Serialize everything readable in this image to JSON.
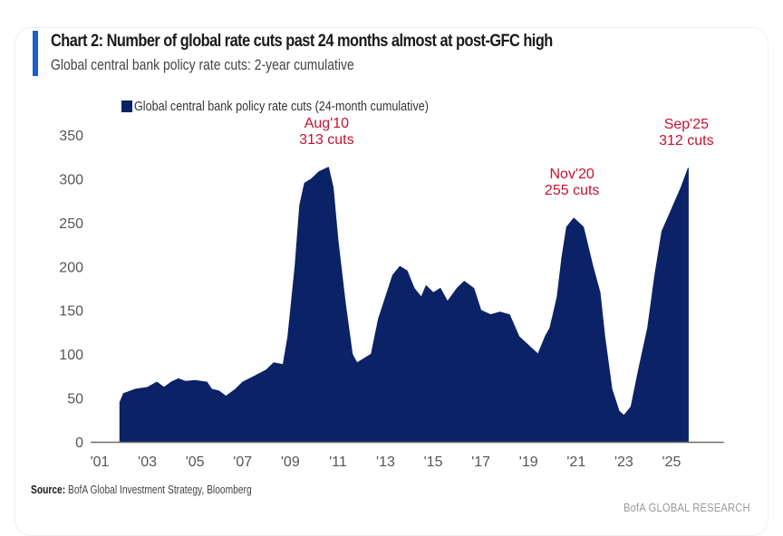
{
  "header": {
    "title": "Chart 2: Number of global rate cuts past 24 months almost at post-GFC high",
    "subtitle": "Global central bank policy rate cuts: 2-year cumulative"
  },
  "footer": {
    "source_label": "Source:",
    "source_text": " BofA Global Investment Strategy, Bloomberg",
    "brand": "BofA GLOBAL RESEARCH"
  },
  "colors": {
    "series": "#0b2266",
    "annotation": "#c8102e",
    "accent": "#1a5fc8",
    "axis": "#555555"
  },
  "chart_data": {
    "type": "area",
    "title": "Chart 2: Number of global rate cuts past 24 months almost at post-GFC high",
    "subtitle": "Global central bank policy rate cuts: 2-year cumulative",
    "xlabel": "",
    "ylabel": "",
    "ylim": [
      0,
      350
    ],
    "xlim": [
      2001,
      2027.2
    ],
    "yticks": [
      0,
      50,
      100,
      150,
      200,
      250,
      300,
      350
    ],
    "ytick_labels": [
      "0",
      "50",
      "100",
      "150",
      "200",
      "250",
      "300",
      "350"
    ],
    "xticks": [
      2001,
      2003,
      2005,
      2007,
      2009,
      2011,
      2013,
      2015,
      2017,
      2019,
      2021,
      2023,
      2025
    ],
    "xtick_labels": [
      "'01",
      "'03",
      "'05",
      "'07",
      "'09",
      "'11",
      "'13",
      "'15",
      "'17",
      "'19",
      "'21",
      "'23",
      "'25"
    ],
    "grid": false,
    "legend": {
      "position": "top-left",
      "entries": [
        "Global central bank policy rate cuts (24-month cumulative)"
      ]
    },
    "series": [
      {
        "name": "Global central bank policy rate cuts (24-month cumulative)",
        "x": [
          2001.85,
          2002.0,
          2002.5,
          2003.0,
          2003.4,
          2003.7,
          2004.0,
          2004.3,
          2004.6,
          2005.0,
          2005.5,
          2005.7,
          2006.0,
          2006.3,
          2006.7,
          2007.0,
          2007.5,
          2008.0,
          2008.3,
          2008.7,
          2008.9,
          2009.2,
          2009.4,
          2009.6,
          2009.9,
          2010.2,
          2010.6,
          2010.8,
          2011.0,
          2011.3,
          2011.6,
          2011.8,
          2012.1,
          2012.4,
          2012.7,
          2013.0,
          2013.3,
          2013.6,
          2013.9,
          2014.2,
          2014.5,
          2014.7,
          2015.0,
          2015.3,
          2015.6,
          2016.0,
          2016.3,
          2016.7,
          2017.0,
          2017.4,
          2017.8,
          2018.2,
          2018.6,
          2019.0,
          2019.4,
          2019.7,
          2019.9,
          2020.2,
          2020.4,
          2020.6,
          2020.9,
          2021.3,
          2021.7,
          2022.0,
          2022.2,
          2022.5,
          2022.8,
          2023.0,
          2023.3,
          2023.6,
          2024.0,
          2024.3,
          2024.6,
          2025.0,
          2025.4,
          2025.7
        ],
        "values": [
          45,
          55,
          60,
          62,
          68,
          62,
          68,
          72,
          69,
          70,
          68,
          60,
          58,
          52,
          60,
          68,
          75,
          82,
          90,
          88,
          120,
          200,
          270,
          295,
          300,
          308,
          313,
          290,
          230,
          160,
          100,
          90,
          95,
          100,
          140,
          165,
          190,
          200,
          195,
          175,
          165,
          178,
          170,
          175,
          160,
          175,
          183,
          175,
          150,
          145,
          148,
          145,
          120,
          110,
          100,
          120,
          130,
          165,
          210,
          245,
          255,
          245,
          200,
          170,
          120,
          60,
          35,
          30,
          40,
          80,
          130,
          190,
          240,
          265,
          290,
          312
        ]
      }
    ],
    "annotations": [
      {
        "x": 2010.6,
        "value": 313,
        "label_line1": "Aug'10",
        "label_line2": "313 cuts"
      },
      {
        "x": 2020.9,
        "value": 255,
        "label_line1": "Nov'20",
        "label_line2": "255 cuts"
      },
      {
        "x": 2025.7,
        "value": 312,
        "label_line1": "Sep'25",
        "label_line2": "312 cuts"
      }
    ]
  }
}
